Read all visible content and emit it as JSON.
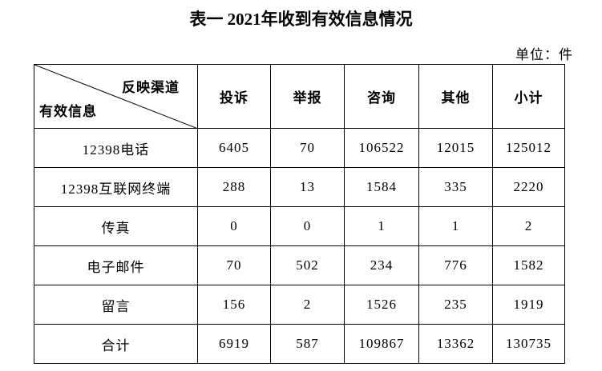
{
  "title": "表一 2021年收到有效信息情况",
  "unit": "单位：件",
  "table": {
    "corner": {
      "top": "反映渠道",
      "bottom": "有效信息"
    },
    "columns": [
      "投诉",
      "举报",
      "咨询",
      "其他",
      "小计"
    ],
    "rows": [
      {
        "label": "12398电话",
        "values": [
          6405,
          70,
          106522,
          12015,
          125012
        ]
      },
      {
        "label": "12398互联网终端",
        "values": [
          288,
          13,
          1584,
          335,
          2220
        ]
      },
      {
        "label": "传真",
        "values": [
          0,
          0,
          1,
          1,
          2
        ]
      },
      {
        "label": "电子邮件",
        "values": [
          70,
          502,
          234,
          776,
          1582
        ]
      },
      {
        "label": "留言",
        "values": [
          156,
          2,
          1526,
          235,
          1919
        ]
      },
      {
        "label": "合计",
        "values": [
          6919,
          587,
          109867,
          13362,
          130735
        ]
      }
    ]
  }
}
